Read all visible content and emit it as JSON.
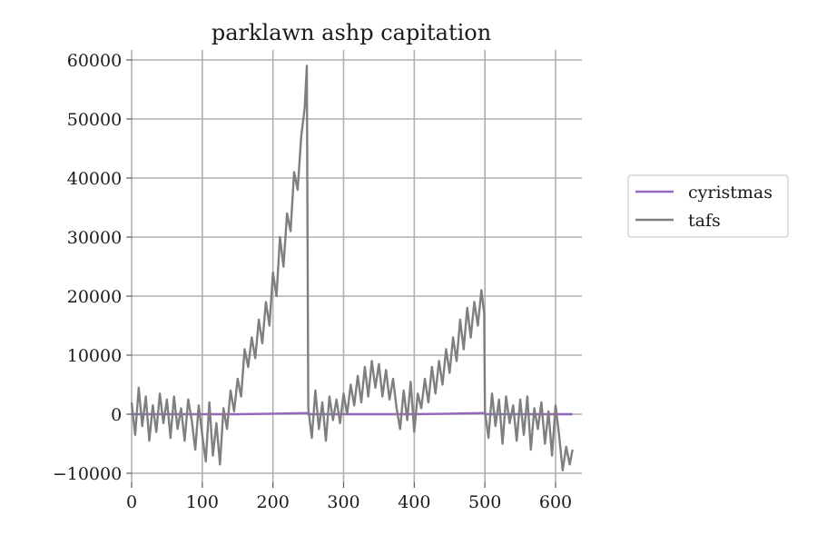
{
  "chart_data": {
    "type": "line",
    "title": "parklawn ashp capitation",
    "xlabel": "",
    "ylabel": "",
    "xlim": [
      -10,
      650
    ],
    "ylim": [
      -12000,
      62000
    ],
    "xticks": [
      0,
      100,
      200,
      300,
      400,
      500,
      600
    ],
    "yticks": [
      -10000,
      0,
      10000,
      20000,
      30000,
      40000,
      50000,
      60000
    ],
    "xtick_labels": [
      "0",
      "100",
      "200",
      "300",
      "400",
      "500",
      "600"
    ],
    "ytick_labels": [
      "−10000",
      "0",
      "10000",
      "20000",
      "30000",
      "40000",
      "50000",
      "60000"
    ],
    "grid": true,
    "legend": {
      "placement": "outside-right",
      "framed": true
    },
    "series": [
      {
        "name": "cyristmas",
        "color": "#9467bd",
        "x": [
          0,
          50,
          100,
          150,
          200,
          249,
          250,
          300,
          350,
          400,
          450,
          499,
          500,
          550,
          600,
          624
        ],
        "y": [
          0,
          0,
          0,
          0,
          100,
          200,
          0,
          0,
          0,
          0,
          100,
          200,
          0,
          0,
          0,
          0
        ]
      },
      {
        "name": "tafs",
        "color": "#7f7f7f",
        "x": [
          0,
          5,
          10,
          15,
          20,
          25,
          30,
          35,
          40,
          45,
          50,
          55,
          60,
          65,
          70,
          75,
          80,
          85,
          90,
          95,
          100,
          105,
          110,
          115,
          120,
          125,
          130,
          135,
          140,
          145,
          150,
          155,
          160,
          165,
          170,
          175,
          180,
          185,
          190,
          195,
          200,
          205,
          210,
          215,
          220,
          225,
          230,
          235,
          240,
          245,
          248,
          250,
          255,
          260,
          265,
          270,
          275,
          280,
          285,
          290,
          295,
          300,
          305,
          310,
          315,
          320,
          325,
          330,
          335,
          340,
          345,
          350,
          355,
          360,
          365,
          370,
          375,
          380,
          385,
          390,
          395,
          400,
          405,
          410,
          415,
          420,
          425,
          430,
          435,
          440,
          445,
          450,
          455,
          460,
          465,
          470,
          475,
          480,
          485,
          490,
          495,
          499,
          500,
          505,
          510,
          515,
          520,
          525,
          530,
          535,
          540,
          545,
          550,
          555,
          560,
          565,
          570,
          575,
          580,
          585,
          590,
          595,
          600,
          605,
          610,
          615,
          620,
          624
        ],
        "y": [
          2000,
          -3500,
          4500,
          -2000,
          3000,
          -4500,
          1500,
          -3000,
          3500,
          -1500,
          2500,
          -4000,
          3000,
          -2500,
          1000,
          -4500,
          2500,
          -1000,
          -6000,
          1500,
          -3500,
          -8000,
          2000,
          -7000,
          -1500,
          -8500,
          1000,
          -2500,
          4000,
          500,
          6000,
          3000,
          11000,
          8000,
          13000,
          9500,
          16000,
          12000,
          19000,
          15000,
          24000,
          20000,
          30000,
          25000,
          34000,
          31000,
          41000,
          38000,
          47000,
          52000,
          59000,
          1000,
          -4000,
          4000,
          -2500,
          2000,
          -4500,
          3000,
          -1000,
          2500,
          -1500,
          3500,
          0,
          5000,
          1500,
          6500,
          2000,
          8000,
          3000,
          9000,
          4500,
          8500,
          3000,
          7500,
          2500,
          6000,
          1000,
          -2500,
          4000,
          -1000,
          5500,
          -3000,
          3500,
          1000,
          6000,
          2000,
          8000,
          3500,
          9000,
          5000,
          11000,
          7000,
          13000,
          9000,
          16000,
          11000,
          18000,
          13000,
          19000,
          15000,
          21000,
          17000,
          500,
          -4000,
          3500,
          -2000,
          2500,
          -5000,
          3000,
          -1500,
          1500,
          -4500,
          2500,
          -3500,
          3000,
          -6000,
          1000,
          -2500,
          2000,
          -5000,
          500,
          -7000,
          1500,
          -3500,
          -9500,
          -5500,
          -8500,
          -6000
        ]
      }
    ]
  }
}
